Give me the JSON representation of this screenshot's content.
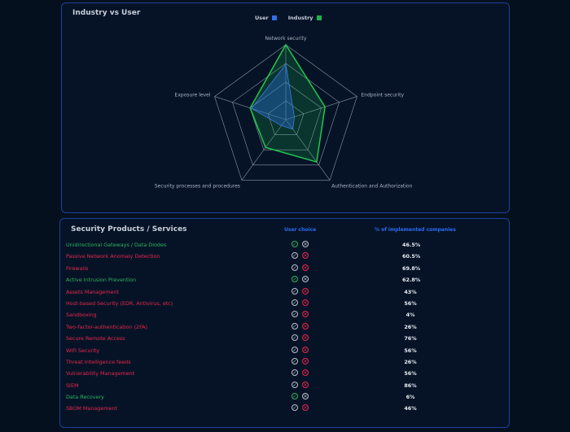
{
  "radar": {
    "title": "Industry vs User",
    "legend": [
      {
        "label": "User",
        "color": "#2f6fe8"
      },
      {
        "label": "Industry",
        "color": "#1db24d"
      }
    ],
    "axes": [
      "Network security",
      "Endpoint security",
      "Authentication and Authorization",
      "Security processes and procedures",
      "Exposure level"
    ],
    "user_values": [
      0.74,
      0.12,
      0.16,
      0.1,
      0.48
    ],
    "industry_values": [
      1.0,
      0.55,
      0.7,
      0.46,
      0.5
    ]
  },
  "products": {
    "title": "Security Products / Services",
    "col_user_choice": "User choice",
    "col_implemented": "% of implemented companies",
    "items": [
      {
        "name": "Unidirectional Gateways / Data Diodes",
        "status": "ok",
        "pct": "46.5%"
      },
      {
        "name": "Passive Network Anomaly Detection",
        "status": "bad",
        "pct": "60.5%"
      },
      {
        "name": "Firewalls",
        "status": "bad",
        "pct": "69.8%"
      },
      {
        "name": "Active Intrusion Prevention",
        "status": "ok",
        "pct": "62.8%"
      },
      {
        "name": "Assets Management",
        "status": "bad",
        "pct": "43%"
      },
      {
        "name": "Host-based Security (EDR, Antivirus, etc)",
        "status": "bad",
        "pct": "56%"
      },
      {
        "name": "Sandboxing",
        "status": "bad",
        "pct": "4%"
      },
      {
        "name": "Two-factor-authentication (2FA)",
        "status": "bad",
        "pct": "26%"
      },
      {
        "name": "Secure Remote Access",
        "status": "bad",
        "pct": "76%"
      },
      {
        "name": "WiFi Security",
        "status": "bad",
        "pct": "56%"
      },
      {
        "name": "Threat Intelligence feeds",
        "status": "bad",
        "pct": "26%"
      },
      {
        "name": "Vulnerability Management",
        "status": "bad",
        "pct": "56%"
      },
      {
        "name": "SIEM",
        "status": "bad",
        "pct": "86%"
      },
      {
        "name": "Data Recovery",
        "status": "ok",
        "pct": "6%"
      },
      {
        "name": "SBOM Management",
        "status": "bad",
        "pct": "46%"
      }
    ]
  }
}
